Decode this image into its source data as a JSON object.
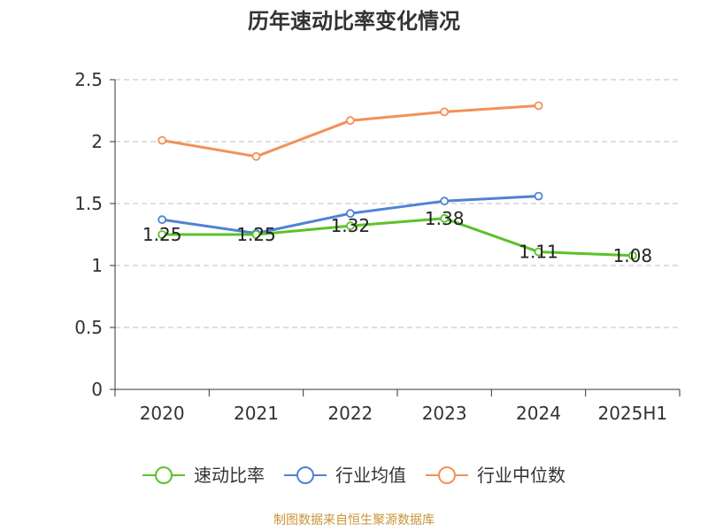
{
  "chart_data": {
    "type": "line",
    "title": "历年速动比率变化情况",
    "categories": [
      "2020",
      "2021",
      "2022",
      "2023",
      "2024",
      "2025H1"
    ],
    "ylim": [
      0,
      2.5
    ],
    "yticks": [
      "0",
      "0.5",
      "1",
      "1.5",
      "2",
      "2.5"
    ],
    "grid": true,
    "legend_position": "bottom",
    "series": [
      {
        "name": "速动比率",
        "color": "#5cc228",
        "values": [
          1.25,
          1.25,
          1.32,
          1.38,
          1.11,
          1.08
        ],
        "labels": [
          "1.25",
          "1.25",
          "1.32",
          "1.38",
          "1.11",
          "1.08"
        ]
      },
      {
        "name": "行业均值",
        "color": "#4f81d6",
        "values": [
          1.37,
          1.26,
          1.42,
          1.52,
          1.56,
          null
        ]
      },
      {
        "name": "行业中位数",
        "color": "#f39058",
        "values": [
          2.01,
          1.88,
          2.17,
          2.24,
          2.29,
          null
        ]
      }
    ]
  },
  "footer": {
    "source": "制图数据来自恒生聚源数据库"
  }
}
